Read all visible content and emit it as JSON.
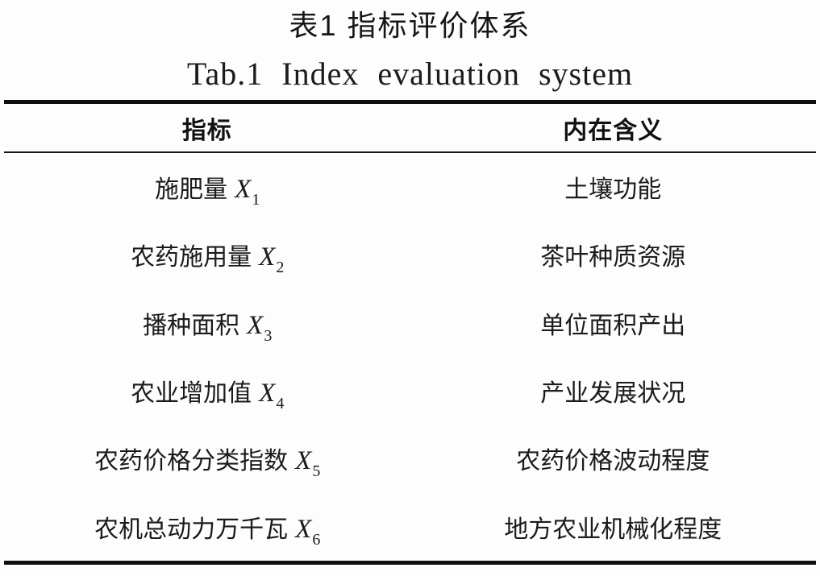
{
  "title": {
    "zh": "表1 指标评价体系",
    "en": "Tab.1 Index evaluation system"
  },
  "colors": {
    "background": "#fdfdfd",
    "text": "#1a1a1a",
    "rule": "#0f0f0f"
  },
  "table": {
    "headers": [
      "指标",
      "内在含义"
    ],
    "rows": [
      {
        "indicator": "施肥量",
        "variable": "X",
        "subscript": "1",
        "meaning": "土壤功能"
      },
      {
        "indicator": "农药施用量",
        "variable": "X",
        "subscript": "2",
        "meaning": "茶叶种质资源"
      },
      {
        "indicator": "播种面积",
        "variable": "X",
        "subscript": "3",
        "meaning": "单位面积产出"
      },
      {
        "indicator": "农业增加值",
        "variable": "X",
        "subscript": "4",
        "meaning": "产业发展状况"
      },
      {
        "indicator": "农药价格分类指数",
        "variable": "X",
        "subscript": "5",
        "meaning": "农药价格波动程度"
      },
      {
        "indicator": "农机总动力万千瓦",
        "variable": "X",
        "subscript": "6",
        "meaning": "地方农业机械化程度"
      }
    ]
  }
}
